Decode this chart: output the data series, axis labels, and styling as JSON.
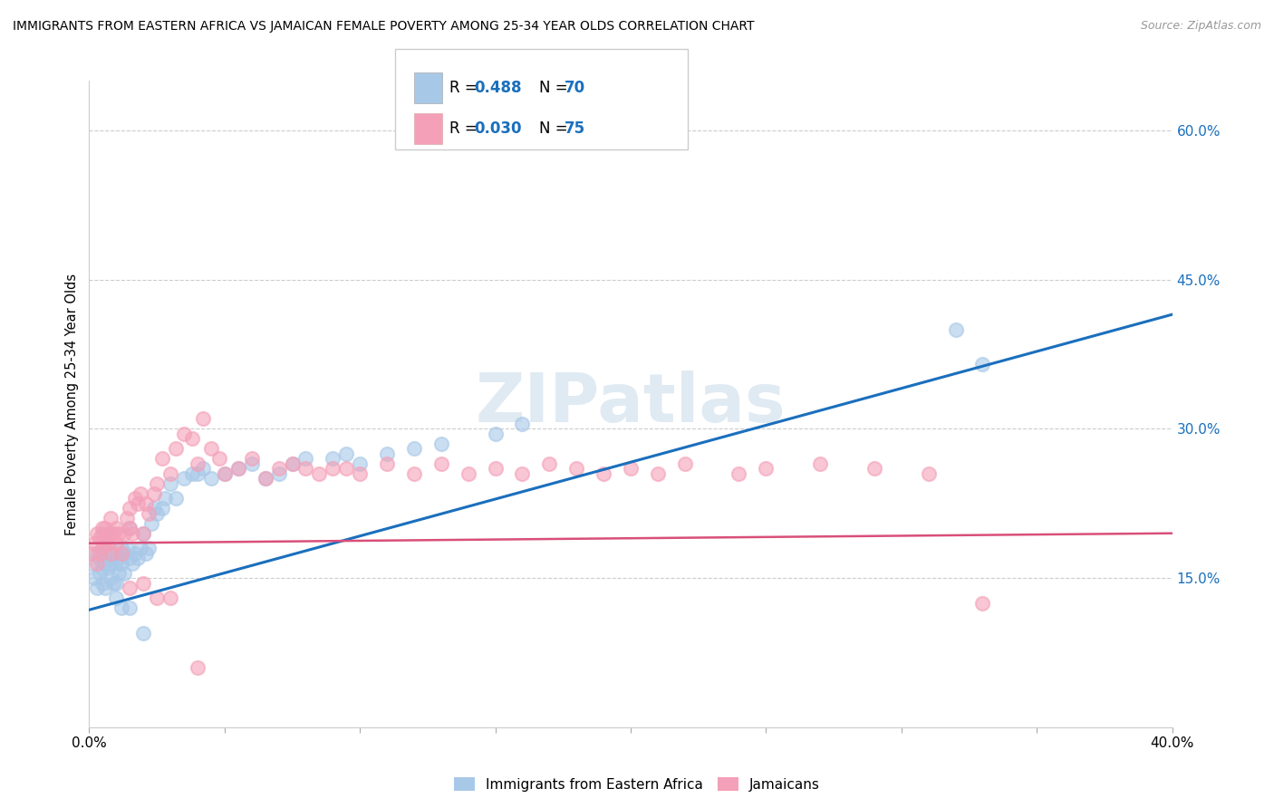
{
  "title": "IMMIGRANTS FROM EASTERN AFRICA VS JAMAICAN FEMALE POVERTY AMONG 25-34 YEAR OLDS CORRELATION CHART",
  "source": "Source: ZipAtlas.com",
  "ylabel": "Female Poverty Among 25-34 Year Olds",
  "xlim": [
    0.0,
    0.4
  ],
  "ylim": [
    0.0,
    0.65
  ],
  "x_ticks": [
    0.0,
    0.05,
    0.1,
    0.15,
    0.2,
    0.25,
    0.3,
    0.35,
    0.4
  ],
  "x_tick_labels": [
    "0.0%",
    "",
    "",
    "",
    "",
    "",
    "",
    "",
    "40.0%"
  ],
  "y_ticks_right": [
    0.15,
    0.3,
    0.45,
    0.6
  ],
  "y_tick_labels_right": [
    "15.0%",
    "30.0%",
    "45.0%",
    "60.0%"
  ],
  "watermark": "ZIPatlas",
  "color_blue": "#a8c8e8",
  "color_pink": "#f4a0b8",
  "line_blue": "#1a6fbd",
  "line_pink": "#d94f7a",
  "trendline1_x": [
    0.0,
    0.4
  ],
  "trendline1_y": [
    0.118,
    0.415
  ],
  "trendline2_x": [
    0.0,
    0.4
  ],
  "trendline2_y": [
    0.185,
    0.195
  ],
  "scatter1_x": [
    0.001,
    0.002,
    0.003,
    0.003,
    0.004,
    0.004,
    0.005,
    0.005,
    0.006,
    0.006,
    0.006,
    0.007,
    0.007,
    0.008,
    0.008,
    0.009,
    0.009,
    0.01,
    0.01,
    0.011,
    0.011,
    0.012,
    0.012,
    0.013,
    0.013,
    0.014,
    0.015,
    0.015,
    0.016,
    0.017,
    0.018,
    0.019,
    0.02,
    0.021,
    0.022,
    0.023,
    0.024,
    0.025,
    0.027,
    0.028,
    0.03,
    0.032,
    0.035,
    0.038,
    0.04,
    0.042,
    0.045,
    0.05,
    0.055,
    0.06,
    0.065,
    0.07,
    0.075,
    0.08,
    0.09,
    0.095,
    0.1,
    0.11,
    0.12,
    0.13,
    0.15,
    0.16,
    0.32,
    0.33,
    0.005,
    0.008,
    0.01,
    0.012,
    0.015,
    0.02
  ],
  "scatter1_y": [
    0.165,
    0.15,
    0.14,
    0.175,
    0.155,
    0.17,
    0.145,
    0.16,
    0.14,
    0.165,
    0.175,
    0.16,
    0.18,
    0.15,
    0.165,
    0.145,
    0.175,
    0.145,
    0.165,
    0.155,
    0.17,
    0.165,
    0.18,
    0.155,
    0.175,
    0.18,
    0.17,
    0.2,
    0.165,
    0.175,
    0.17,
    0.18,
    0.195,
    0.175,
    0.18,
    0.205,
    0.22,
    0.215,
    0.22,
    0.23,
    0.245,
    0.23,
    0.25,
    0.255,
    0.255,
    0.26,
    0.25,
    0.255,
    0.26,
    0.265,
    0.25,
    0.255,
    0.265,
    0.27,
    0.27,
    0.275,
    0.265,
    0.275,
    0.28,
    0.285,
    0.295,
    0.305,
    0.4,
    0.365,
    0.195,
    0.195,
    0.13,
    0.12,
    0.12,
    0.095
  ],
  "scatter2_x": [
    0.001,
    0.002,
    0.003,
    0.003,
    0.004,
    0.004,
    0.005,
    0.005,
    0.006,
    0.006,
    0.007,
    0.007,
    0.008,
    0.008,
    0.009,
    0.01,
    0.01,
    0.011,
    0.012,
    0.013,
    0.014,
    0.015,
    0.015,
    0.016,
    0.017,
    0.018,
    0.019,
    0.02,
    0.021,
    0.022,
    0.024,
    0.025,
    0.027,
    0.03,
    0.032,
    0.035,
    0.038,
    0.04,
    0.042,
    0.045,
    0.048,
    0.05,
    0.055,
    0.06,
    0.065,
    0.07,
    0.075,
    0.08,
    0.085,
    0.09,
    0.095,
    0.1,
    0.11,
    0.12,
    0.13,
    0.14,
    0.15,
    0.16,
    0.17,
    0.18,
    0.19,
    0.2,
    0.21,
    0.22,
    0.24,
    0.25,
    0.27,
    0.29,
    0.31,
    0.33,
    0.015,
    0.02,
    0.025,
    0.03,
    0.04
  ],
  "scatter2_y": [
    0.175,
    0.185,
    0.195,
    0.165,
    0.19,
    0.175,
    0.2,
    0.18,
    0.19,
    0.2,
    0.185,
    0.195,
    0.21,
    0.175,
    0.195,
    0.185,
    0.2,
    0.195,
    0.175,
    0.195,
    0.21,
    0.2,
    0.22,
    0.195,
    0.23,
    0.225,
    0.235,
    0.195,
    0.225,
    0.215,
    0.235,
    0.245,
    0.27,
    0.255,
    0.28,
    0.295,
    0.29,
    0.265,
    0.31,
    0.28,
    0.27,
    0.255,
    0.26,
    0.27,
    0.25,
    0.26,
    0.265,
    0.26,
    0.255,
    0.26,
    0.26,
    0.255,
    0.265,
    0.255,
    0.265,
    0.255,
    0.26,
    0.255,
    0.265,
    0.26,
    0.255,
    0.26,
    0.255,
    0.265,
    0.255,
    0.26,
    0.265,
    0.26,
    0.255,
    0.125,
    0.14,
    0.145,
    0.13,
    0.13,
    0.06
  ]
}
